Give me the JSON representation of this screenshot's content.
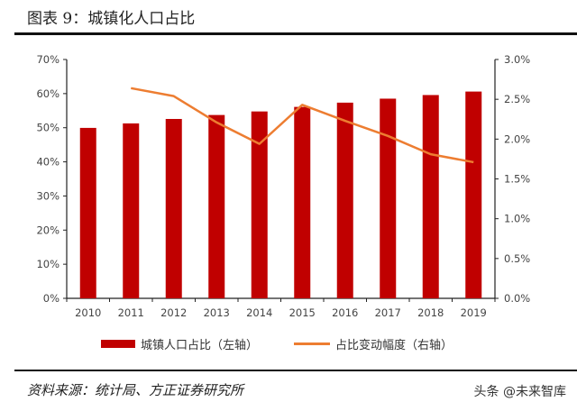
{
  "title": "图表 9：城镇化人口占比",
  "source": "资料来源：统计局、方正证券研究所",
  "watermark": "头条 @未来智库",
  "chart_data": {
    "type": "bar+line",
    "categories": [
      "2010",
      "2011",
      "2012",
      "2013",
      "2014",
      "2015",
      "2016",
      "2017",
      "2018",
      "2019"
    ],
    "series": [
      {
        "name": "城镇人口占比（左轴）",
        "type": "bar",
        "axis": "left",
        "color": "#c00000",
        "values": [
          49.95,
          51.27,
          52.57,
          53.73,
          54.77,
          56.1,
          57.35,
          58.52,
          59.58,
          60.6
        ]
      },
      {
        "name": "占比变动幅度（右轴）",
        "type": "line",
        "axis": "right",
        "color": "#ed7d31",
        "values": [
          null,
          2.64,
          2.54,
          2.21,
          1.94,
          2.43,
          2.23,
          2.04,
          1.81,
          1.71
        ]
      }
    ],
    "left_axis": {
      "ylim": [
        0,
        70
      ],
      "ticks": [
        "0%",
        "10%",
        "20%",
        "30%",
        "40%",
        "50%",
        "60%",
        "70%"
      ]
    },
    "right_axis": {
      "ylim": [
        0,
        3
      ],
      "ticks": [
        "0.0%",
        "0.5%",
        "1.0%",
        "1.5%",
        "2.0%",
        "2.5%",
        "3.0%"
      ]
    },
    "grid": false,
    "legend": "bottom"
  }
}
